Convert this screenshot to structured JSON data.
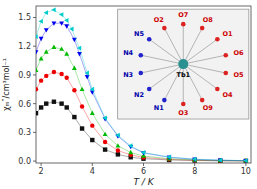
{
  "chart_data": {
    "type": "line",
    "xlabel": "T / K",
    "ylabel": "χₘ″/cm³mol⁻¹",
    "xlim": [
      1.8,
      10.2
    ],
    "ylim": [
      -0.02,
      1.62
    ],
    "xticks": [
      2,
      4,
      6,
      8,
      10
    ],
    "yticks": [
      0.0,
      0.3,
      0.6,
      0.9,
      1.2,
      1.5
    ],
    "series": [
      {
        "color": "#111111",
        "marker": "square",
        "x": [
          1.8,
          2.0,
          2.2,
          2.5,
          2.8,
          3.0,
          3.3,
          3.6,
          4.0,
          4.5,
          5.0,
          5.5,
          6.0,
          7.0,
          8.0,
          9.0,
          10.0
        ],
        "values": [
          0.5,
          0.56,
          0.6,
          0.62,
          0.6,
          0.56,
          0.46,
          0.34,
          0.22,
          0.12,
          0.07,
          0.04,
          0.025,
          0.012,
          0.006,
          0.003,
          0.002
        ]
      },
      {
        "color": "#ee0000",
        "marker": "circle",
        "x": [
          1.8,
          2.0,
          2.2,
          2.5,
          2.8,
          3.0,
          3.3,
          3.6,
          4.0,
          4.5,
          5.0,
          5.5,
          6.0,
          7.0,
          8.0,
          9.0,
          10.0
        ],
        "values": [
          0.75,
          0.84,
          0.89,
          0.93,
          0.91,
          0.87,
          0.74,
          0.57,
          0.37,
          0.2,
          0.11,
          0.065,
          0.038,
          0.018,
          0.008,
          0.004,
          0.002
        ]
      },
      {
        "color": "#00bb00",
        "marker": "triangle-up",
        "x": [
          1.8,
          2.0,
          2.2,
          2.5,
          2.8,
          3.0,
          3.3,
          3.6,
          4.0,
          4.5,
          5.0,
          5.5,
          6.0,
          7.0,
          8.0,
          9.0,
          10.0
        ],
        "values": [
          0.95,
          1.07,
          1.14,
          1.19,
          1.17,
          1.12,
          0.97,
          0.75,
          0.5,
          0.28,
          0.16,
          0.09,
          0.053,
          0.025,
          0.012,
          0.006,
          0.003
        ]
      },
      {
        "color": "#0000ee",
        "marker": "triangle-down",
        "x": [
          1.8,
          2.0,
          2.2,
          2.5,
          2.8,
          3.0,
          3.3,
          3.5,
          3.8,
          4.0,
          4.5,
          5.0,
          5.5,
          6.0,
          7.0,
          8.0,
          9.0,
          10.0
        ],
        "values": [
          1.14,
          1.28,
          1.37,
          1.44,
          1.44,
          1.41,
          1.27,
          1.12,
          0.88,
          0.72,
          0.44,
          0.26,
          0.15,
          0.085,
          0.04,
          0.018,
          0.009,
          0.004
        ]
      },
      {
        "color": "#00cccc",
        "marker": "triangle-left",
        "x": [
          1.8,
          2.0,
          2.2,
          2.5,
          2.8,
          3.0,
          3.2,
          3.5,
          3.8,
          4.0,
          4.5,
          5.0,
          5.5,
          6.0,
          7.0,
          8.0,
          9.0,
          10.0
        ],
        "values": [
          1.3,
          1.46,
          1.55,
          1.58,
          1.53,
          1.47,
          1.38,
          1.18,
          0.92,
          0.75,
          0.45,
          0.27,
          0.16,
          0.09,
          0.043,
          0.02,
          0.01,
          0.005
        ]
      }
    ],
    "annotations": [
      "Tb1",
      "O7",
      "O8",
      "O1",
      "O6",
      "O5",
      "O4",
      "O9",
      "O3",
      "N1",
      "N2",
      "N3",
      "N4",
      "N5",
      "O2"
    ]
  }
}
